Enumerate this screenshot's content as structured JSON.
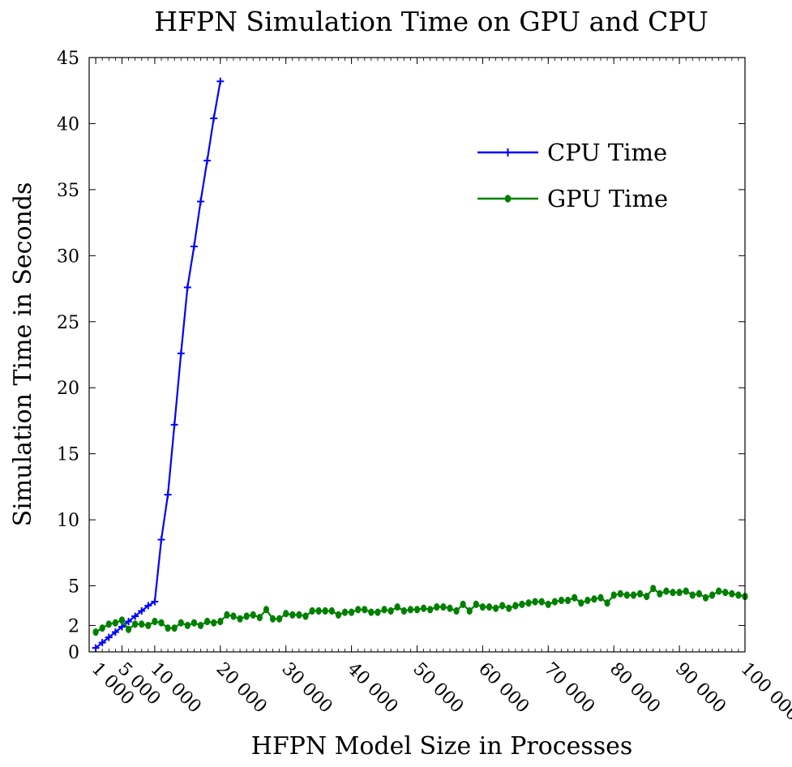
{
  "chart_data": {
    "type": "line",
    "title": "HFPN Simulation Time on GPU and CPU",
    "xlabel": "HFPN Model Size in Processes",
    "ylabel": "Simulation Time in Seconds",
    "xlim": [
      0,
      100000
    ],
    "ylim": [
      0,
      45
    ],
    "x_ticks": [
      1000,
      5000,
      10000,
      20000,
      30000,
      40000,
      50000,
      60000,
      70000,
      80000,
      90000,
      100000
    ],
    "x_tick_labels": [
      "1 000",
      "5 000",
      "10 000",
      "20 000",
      "30 000",
      "40 000",
      "50 000",
      "60 000",
      "70 000",
      "80 000",
      "90 000",
      "100 000"
    ],
    "y_ticks": [
      0,
      2,
      5,
      10,
      15,
      20,
      25,
      30,
      35,
      40,
      45
    ],
    "y_tick_labels": [
      "0",
      "2",
      "5",
      "10",
      "15",
      "20",
      "25",
      "30",
      "35",
      "40",
      "45"
    ],
    "legend_position": "top-right",
    "series": [
      {
        "name": "CPU Time",
        "label": "CPU Time",
        "color": "#0000ff",
        "marker": "plus",
        "x": [
          1000,
          2000,
          3000,
          4000,
          5000,
          6000,
          7000,
          8000,
          9000,
          10000,
          11000,
          12000,
          13000,
          14000,
          15000,
          16000,
          17000,
          18000,
          19000,
          20000
        ],
        "values": [
          0.3,
          0.7,
          1.1,
          1.5,
          1.9,
          2.3,
          2.7,
          3.1,
          3.5,
          3.8,
          8.5,
          11.9,
          17.2,
          22.6,
          27.6,
          30.7,
          34.1,
          37.2,
          40.4,
          43.2
        ]
      },
      {
        "name": "GPU Time",
        "label": "GPU Time",
        "color": "#008000",
        "marker": "dot",
        "x": [
          1000,
          2000,
          3000,
          4000,
          5000,
          6000,
          7000,
          8000,
          9000,
          10000,
          11000,
          12000,
          13000,
          14000,
          15000,
          16000,
          17000,
          18000,
          19000,
          20000,
          21000,
          22000,
          23000,
          24000,
          25000,
          26000,
          27000,
          28000,
          29000,
          30000,
          31000,
          32000,
          33000,
          34000,
          35000,
          36000,
          37000,
          38000,
          39000,
          40000,
          41000,
          42000,
          43000,
          44000,
          45000,
          46000,
          47000,
          48000,
          49000,
          50000,
          51000,
          52000,
          53000,
          54000,
          55000,
          56000,
          57000,
          58000,
          59000,
          60000,
          61000,
          62000,
          63000,
          64000,
          65000,
          66000,
          67000,
          68000,
          69000,
          70000,
          71000,
          72000,
          73000,
          74000,
          75000,
          76000,
          77000,
          78000,
          79000,
          80000,
          81000,
          82000,
          83000,
          84000,
          85000,
          86000,
          87000,
          88000,
          89000,
          90000,
          91000,
          92000,
          93000,
          94000,
          95000,
          96000,
          97000,
          98000,
          99000,
          100000
        ],
        "values": [
          1.5,
          1.8,
          2.1,
          2.2,
          2.4,
          1.7,
          2.1,
          2.1,
          2.0,
          2.3,
          2.2,
          1.8,
          1.8,
          2.2,
          2.0,
          2.2,
          2.0,
          2.3,
          2.2,
          2.3,
          2.8,
          2.7,
          2.5,
          2.7,
          2.8,
          2.6,
          3.2,
          2.5,
          2.5,
          2.9,
          2.8,
          2.8,
          2.7,
          3.1,
          3.1,
          3.1,
          3.1,
          2.8,
          3.0,
          3.0,
          3.2,
          3.2,
          3.0,
          3.0,
          3.2,
          3.1,
          3.4,
          3.1,
          3.2,
          3.2,
          3.3,
          3.2,
          3.4,
          3.4,
          3.3,
          3.1,
          3.6,
          3.1,
          3.6,
          3.4,
          3.4,
          3.3,
          3.5,
          3.3,
          3.5,
          3.6,
          3.7,
          3.8,
          3.8,
          3.6,
          3.8,
          3.9,
          3.9,
          4.1,
          3.7,
          3.9,
          4.0,
          4.1,
          3.7,
          4.3,
          4.4,
          4.3,
          4.3,
          4.4,
          4.2,
          4.8,
          4.4,
          4.6,
          4.5,
          4.5,
          4.6,
          4.3,
          4.4,
          4.1,
          4.3,
          4.6,
          4.5,
          4.4,
          4.3,
          4.2
        ]
      }
    ]
  }
}
